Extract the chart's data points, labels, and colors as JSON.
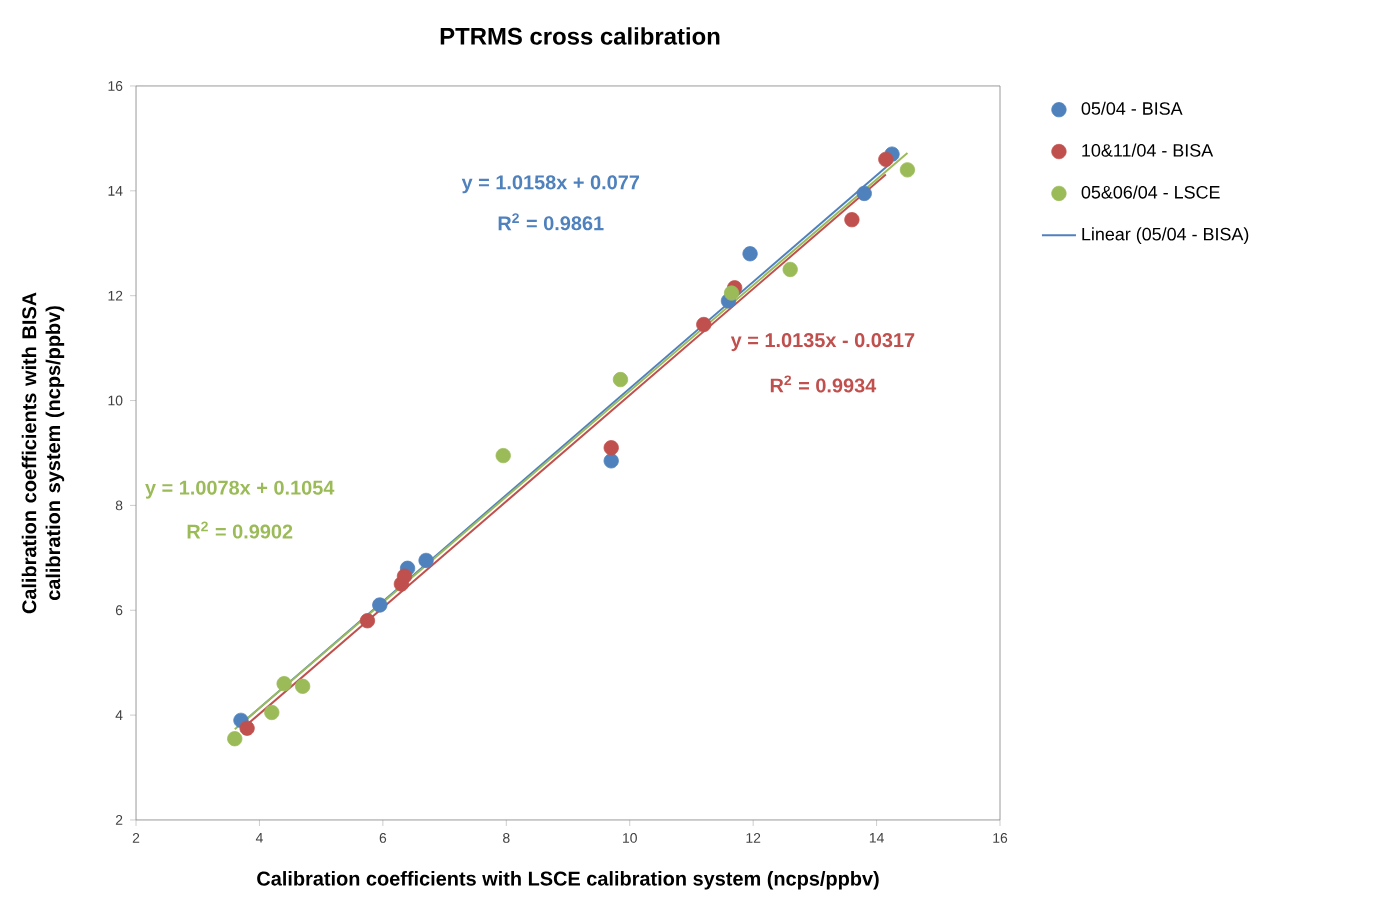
{
  "chart_data": {
    "type": "scatter",
    "title": "PTRMS cross calibration",
    "xlabel": "Calibration coefficients with LSCE calibration system (ncps/ppbv)",
    "ylabel": "Calibration coefficients with BISA calibration system (ncps/ppbv)",
    "xlim": [
      2,
      16
    ],
    "ylim": [
      2,
      16
    ],
    "xticks": [
      2,
      4,
      6,
      8,
      10,
      12,
      14,
      16
    ],
    "yticks": [
      2,
      4,
      6,
      8,
      10,
      12,
      14,
      16
    ],
    "grid": false,
    "legend": "right",
    "marker": "circle",
    "series": [
      {
        "name": "05/04 - BISA",
        "color": "#4f81bd",
        "x": [
          3.7,
          5.95,
          6.4,
          6.7,
          9.7,
          11.6,
          11.95,
          13.8,
          14.25
        ],
        "values": [
          3.9,
          6.1,
          6.8,
          6.95,
          8.85,
          11.9,
          12.8,
          13.95,
          14.7
        ]
      },
      {
        "name": "10&11/04 - BISA",
        "color": "#c0504d",
        "x": [
          3.8,
          5.75,
          6.3,
          6.35,
          9.7,
          11.2,
          11.7,
          13.6,
          14.15
        ],
        "values": [
          3.75,
          5.8,
          6.5,
          6.65,
          9.1,
          11.45,
          12.15,
          13.45,
          14.6
        ]
      },
      {
        "name": "05&06/04 - LSCE",
        "color": "#9bbb59",
        "x": [
          3.6,
          4.2,
          4.4,
          4.7,
          7.95,
          9.85,
          11.65,
          12.6,
          14.5
        ],
        "values": [
          3.55,
          4.05,
          4.6,
          4.55,
          8.95,
          10.4,
          12.05,
          12.5,
          14.4
        ]
      },
      {
        "name": "Linear (05/04 - BISA)",
        "type": "line",
        "marker": "none",
        "color": "#4f81bd",
        "x": [
          3.7,
          14.25
        ],
        "values": [
          3.83,
          14.55
        ]
      },
      {
        "type": "line",
        "marker": "none",
        "color": "#c0504d",
        "x": [
          3.8,
          14.15
        ],
        "values": [
          3.82,
          14.31
        ]
      },
      {
        "type": "line",
        "marker": "none",
        "color": "#9bbb59",
        "x": [
          3.6,
          14.5
        ],
        "values": [
          3.73,
          14.72
        ]
      }
    ],
    "annotations": [
      "y = 1.0158x + 0.077",
      "R$^{2}$ = 0.9861",
      "y = 1.0135x - 0.0317",
      "R$^{2}$ = 0.9934",
      "y = 1.0078x + 0.1054",
      "R$^{2}$ = 0.9902"
    ]
  }
}
